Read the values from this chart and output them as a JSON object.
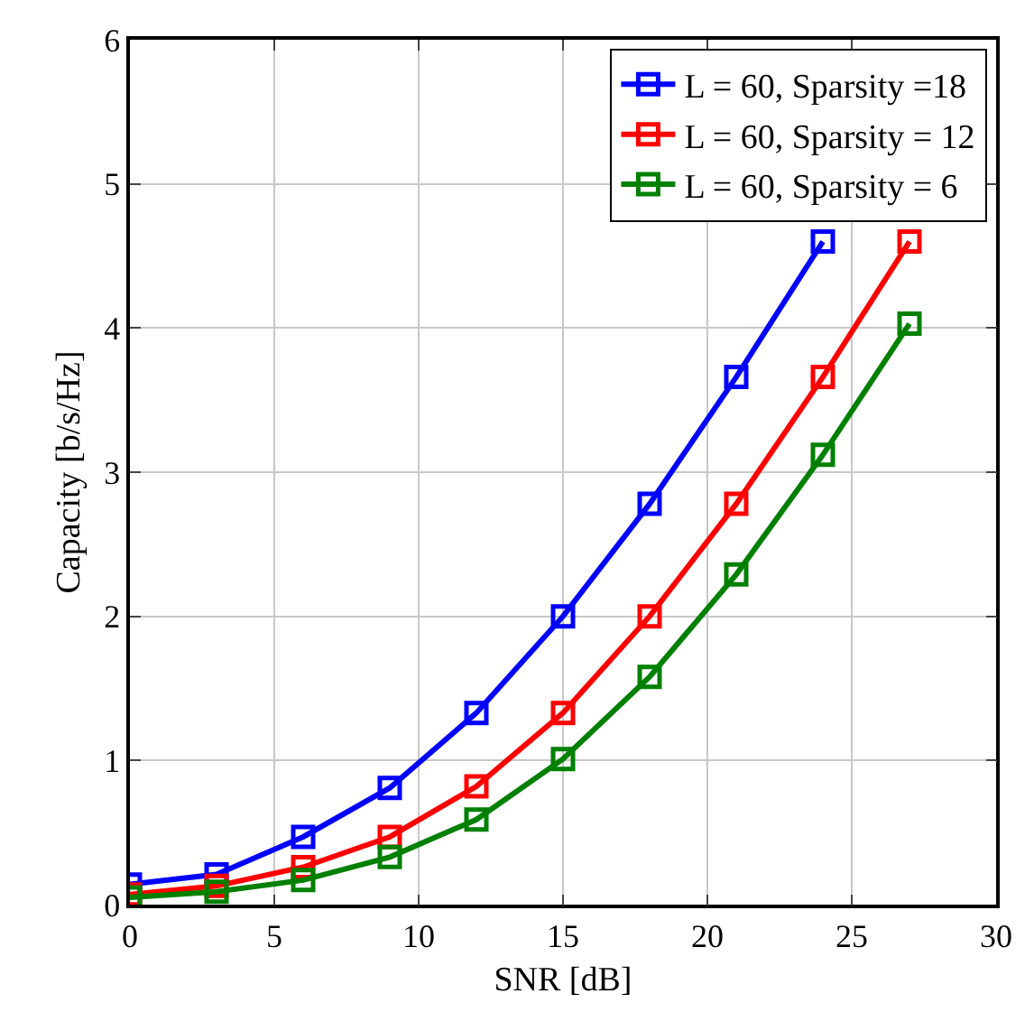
{
  "chart_data": {
    "type": "line",
    "xlabel": "SNR [dB]",
    "ylabel": "Capacity [b/s/Hz]",
    "x": [
      0,
      3,
      6,
      9,
      12,
      15,
      18,
      21,
      24,
      27
    ],
    "series": [
      {
        "name": "L = 60, Sparsity =18",
        "color": "#0000ff",
        "values": [
          0.14,
          0.21,
          0.47,
          0.81,
          1.33,
          2.0,
          2.78,
          3.66,
          4.6,
          null
        ]
      },
      {
        "name": "L = 60, Sparsity = 12",
        "color": "#ff0000",
        "values": [
          0.07,
          0.13,
          0.26,
          0.47,
          0.82,
          1.33,
          2.0,
          2.78,
          3.66,
          4.6
        ]
      },
      {
        "name": "L = 60, Sparsity = 6",
        "color": "#008000",
        "values": [
          0.05,
          0.09,
          0.17,
          0.33,
          0.59,
          1.01,
          1.58,
          2.29,
          3.12,
          4.03
        ]
      }
    ],
    "xlim": [
      0,
      30
    ],
    "xticks": [
      0,
      5,
      10,
      15,
      20,
      25,
      30
    ],
    "ylim": [
      0,
      6
    ],
    "yticks": [
      0,
      1,
      2,
      3,
      4,
      5,
      6
    ],
    "grid": true,
    "legend": "top right",
    "marker": "square",
    "line_style": "solid"
  }
}
